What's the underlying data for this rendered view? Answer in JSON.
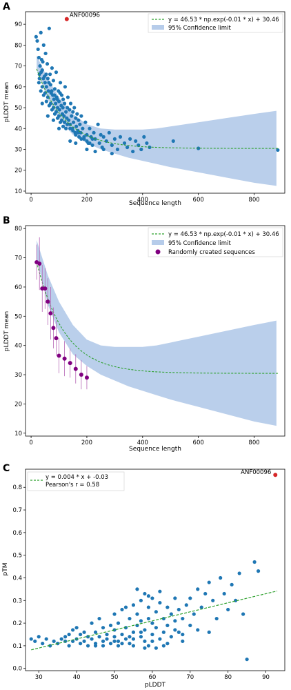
{
  "chart_data": [
    {
      "panel": "A",
      "type": "scatter",
      "xlabel": "Sequence length",
      "ylabel": "pLDDT mean",
      "xlim": [
        -20,
        910
      ],
      "ylim": [
        9,
        96
      ],
      "xticks": [
        0,
        200,
        400,
        600,
        800
      ],
      "yticks": [
        10,
        20,
        30,
        40,
        50,
        60,
        70,
        80,
        90
      ],
      "legend_position": "top-right",
      "fit_label": "y =  46.53 * np.exp(-0.01 * x) + 30.46",
      "band_label": "95% Confidence limit",
      "fit": {
        "a": 46.53,
        "k": 0.01,
        "c": 30.46
      },
      "band": {
        "x": [
          20,
          60,
          100,
          150,
          200,
          250,
          300,
          350,
          400,
          450,
          500,
          600,
          700,
          800,
          880
        ],
        "lower": [
          68,
          54,
          44.5,
          37,
          33,
          30,
          28,
          26,
          24.5,
          23,
          21.5,
          19,
          16.5,
          14,
          12.5
        ],
        "upper": [
          75,
          64,
          55,
          47,
          42,
          40,
          39.5,
          39.5,
          39.5,
          40,
          41,
          43,
          45,
          47,
          48.5
        ]
      },
      "outlier": {
        "label": "ANF00096",
        "x": 128,
        "y": 92.5
      },
      "points": [
        [
          18,
          84
        ],
        [
          22,
          82
        ],
        [
          25,
          78
        ],
        [
          28,
          74
        ],
        [
          30,
          66
        ],
        [
          32,
          70
        ],
        [
          35,
          86
        ],
        [
          38,
          73
        ],
        [
          40,
          68
        ],
        [
          42,
          72
        ],
        [
          45,
          80
        ],
        [
          48,
          65
        ],
        [
          50,
          62
        ],
        [
          52,
          76
        ],
        [
          55,
          60
        ],
        [
          58,
          71
        ],
        [
          60,
          64
        ],
        [
          62,
          58
        ],
        [
          65,
          88
        ],
        [
          68,
          66
        ],
        [
          70,
          61
        ],
        [
          72,
          57
        ],
        [
          75,
          69
        ],
        [
          78,
          56
        ],
        [
          80,
          63
        ],
        [
          82,
          54
        ],
        [
          85,
          59
        ],
        [
          88,
          52
        ],
        [
          90,
          67
        ],
        [
          92,
          55
        ],
        [
          95,
          50
        ],
        [
          98,
          58
        ],
        [
          100,
          53
        ],
        [
          102,
          49
        ],
        [
          105,
          62
        ],
        [
          108,
          51
        ],
        [
          110,
          56
        ],
        [
          112,
          47
        ],
        [
          115,
          54
        ],
        [
          118,
          46
        ],
        [
          120,
          52
        ],
        [
          122,
          60
        ],
        [
          125,
          48
        ],
        [
          128,
          45
        ],
        [
          130,
          50
        ],
        [
          132,
          55
        ],
        [
          135,
          44
        ],
        [
          138,
          49
        ],
        [
          140,
          42
        ],
        [
          142,
          52
        ],
        [
          145,
          46
        ],
        [
          148,
          40
        ],
        [
          150,
          48
        ],
        [
          152,
          43
        ],
        [
          155,
          50
        ],
        [
          158,
          38
        ],
        [
          160,
          45
        ],
        [
          162,
          41
        ],
        [
          165,
          47
        ],
        [
          168,
          39
        ],
        [
          170,
          44
        ],
        [
          172,
          36
        ],
        [
          175,
          42
        ],
        [
          178,
          38
        ],
        [
          180,
          46
        ],
        [
          185,
          40
        ],
        [
          190,
          35
        ],
        [
          195,
          43
        ],
        [
          200,
          37
        ],
        [
          205,
          33
        ],
        [
          210,
          40
        ],
        [
          215,
          36
        ],
        [
          220,
          32
        ],
        [
          225,
          38
        ],
        [
          230,
          35
        ],
        [
          240,
          42
        ],
        [
          245,
          33
        ],
        [
          250,
          37
        ],
        [
          255,
          31
        ],
        [
          260,
          36
        ],
        [
          270,
          34
        ],
        [
          280,
          38
        ],
        [
          290,
          32
        ],
        [
          300,
          35
        ],
        [
          310,
          30
        ],
        [
          320,
          36
        ],
        [
          335,
          33
        ],
        [
          345,
          31
        ],
        [
          355,
          35
        ],
        [
          365,
          29
        ],
        [
          375,
          34
        ],
        [
          385,
          32
        ],
        [
          395,
          30
        ],
        [
          405,
          36
        ],
        [
          415,
          33
        ],
        [
          425,
          31
        ],
        [
          510,
          34
        ],
        [
          600,
          30.5
        ],
        [
          885,
          29.7
        ],
        [
          30,
          64
        ],
        [
          40,
          60
        ],
        [
          50,
          57
        ],
        [
          60,
          55
        ],
        [
          70,
          52
        ],
        [
          80,
          50
        ],
        [
          90,
          48
        ],
        [
          100,
          46
        ],
        [
          110,
          44
        ],
        [
          120,
          43
        ],
        [
          130,
          42
        ],
        [
          140,
          40
        ],
        [
          150,
          39
        ],
        [
          160,
          37
        ],
        [
          170,
          38
        ],
        [
          180,
          35
        ],
        [
          190,
          36
        ],
        [
          200,
          34
        ],
        [
          210,
          33
        ],
        [
          220,
          35
        ],
        [
          35,
          58
        ],
        [
          45,
          56
        ],
        [
          55,
          53
        ],
        [
          65,
          51
        ],
        [
          75,
          49
        ],
        [
          85,
          47
        ],
        [
          95,
          45
        ],
        [
          105,
          43
        ],
        [
          115,
          41
        ],
        [
          125,
          40
        ],
        [
          28,
          62
        ],
        [
          36,
          67
        ],
        [
          44,
          64
        ],
        [
          54,
          66
        ],
        [
          64,
          62
        ],
        [
          74,
          58
        ],
        [
          84,
          56
        ],
        [
          94,
          54
        ],
        [
          104,
          57
        ],
        [
          114,
          50
        ],
        [
          60,
          46
        ],
        [
          80,
          44
        ],
        [
          100,
          40
        ],
        [
          140,
          34
        ],
        [
          160,
          33
        ],
        [
          200,
          30
        ],
        [
          230,
          29
        ],
        [
          260,
          30
        ],
        [
          290,
          28
        ],
        [
          40,
          52
        ]
      ]
    },
    {
      "panel": "B",
      "type": "scatter",
      "xlabel": "Sequence length",
      "ylabel": "pLDDT mean",
      "xlim": [
        -20,
        910
      ],
      "ylim": [
        9,
        81
      ],
      "xticks": [
        0,
        200,
        400,
        600,
        800
      ],
      "yticks": [
        10,
        20,
        30,
        40,
        50,
        60,
        70,
        80
      ],
      "legend_position": "top-right",
      "fit_label": "y =  46.53 * np.exp(-0.01 * x) + 30.46",
      "band_label": "95% Confidence limit",
      "series_label": "Randomly created sequences",
      "fit": {
        "a": 46.53,
        "k": 0.01,
        "c": 30.46
      },
      "band": {
        "x": [
          20,
          60,
          100,
          150,
          200,
          250,
          300,
          350,
          400,
          450,
          500,
          600,
          700,
          800,
          880
        ],
        "lower": [
          70,
          54,
          44.5,
          37,
          33,
          30,
          28,
          26,
          24.5,
          23,
          21.5,
          19,
          16.5,
          14,
          12.5
        ],
        "upper": [
          76,
          64,
          55,
          47,
          42,
          40,
          39.5,
          39.5,
          39.5,
          40,
          41,
          43,
          45,
          47,
          48.5
        ]
      },
      "random_points": [
        {
          "x": 20,
          "y": 68.5,
          "err": 6
        },
        {
          "x": 30,
          "y": 68,
          "err": 9
        },
        {
          "x": 40,
          "y": 59.5,
          "err": 8
        },
        {
          "x": 50,
          "y": 59.5,
          "err": 7
        },
        {
          "x": 60,
          "y": 55,
          "err": 8
        },
        {
          "x": 70,
          "y": 51,
          "err": 9
        },
        {
          "x": 80,
          "y": 46,
          "err": 7
        },
        {
          "x": 90,
          "y": 42.5,
          "err": 6
        },
        {
          "x": 100,
          "y": 36.5,
          "err": 6
        },
        {
          "x": 120,
          "y": 35.5,
          "err": 6
        },
        {
          "x": 140,
          "y": 34,
          "err": 5
        },
        {
          "x": 160,
          "y": 32,
          "err": 5
        },
        {
          "x": 180,
          "y": 30,
          "err": 5
        },
        {
          "x": 200,
          "y": 29,
          "err": 4
        }
      ]
    },
    {
      "panel": "C",
      "type": "scatter",
      "xlabel": "pLDDT",
      "ylabel": "pTM",
      "xlim": [
        26.5,
        95
      ],
      "ylim": [
        -0.01,
        0.88
      ],
      "xticks": [
        30,
        40,
        50,
        60,
        70,
        80,
        90
      ],
      "yticks": [
        0.0,
        0.1,
        0.2,
        0.3,
        0.4,
        0.5,
        0.6,
        0.7,
        0.8
      ],
      "ytick_labels": [
        "0.0",
        "0.1",
        "0.2",
        "0.3",
        "0.4",
        "0.5",
        "0.6",
        "0.7",
        "0.8"
      ],
      "legend_position": "top-left",
      "fit_label": "y = 0.004 * x + -0.03",
      "r_label": "Pearson's r = 0.58",
      "fit": {
        "m": 0.004,
        "b": -0.03,
        "x_range": [
          28,
          93
        ]
      },
      "outlier": {
        "label": "ANF00096",
        "x": 92.5,
        "y": 0.855
      },
      "points": [
        [
          28,
          0.13
        ],
        [
          29,
          0.12
        ],
        [
          30,
          0.14
        ],
        [
          31,
          0.11
        ],
        [
          32,
          0.13
        ],
        [
          33,
          0.1
        ],
        [
          34,
          0.12
        ],
        [
          35,
          0.11
        ],
        [
          36,
          0.13
        ],
        [
          37,
          0.12
        ],
        [
          38,
          0.1
        ],
        [
          38,
          0.15
        ],
        [
          39,
          0.12
        ],
        [
          40,
          0.13
        ],
        [
          40,
          0.18
        ],
        [
          41,
          0.11
        ],
        [
          42,
          0.12
        ],
        [
          42,
          0.16
        ],
        [
          43,
          0.14
        ],
        [
          44,
          0.13
        ],
        [
          44,
          0.2
        ],
        [
          45,
          0.11
        ],
        [
          45,
          0.16
        ],
        [
          46,
          0.14
        ],
        [
          46,
          0.22
        ],
        [
          47,
          0.12
        ],
        [
          47,
          0.18
        ],
        [
          48,
          0.13
        ],
        [
          48,
          0.15
        ],
        [
          49,
          0.19
        ],
        [
          49,
          0.11
        ],
        [
          50,
          0.14
        ],
        [
          50,
          0.24
        ],
        [
          50,
          0.17
        ],
        [
          51,
          0.12
        ],
        [
          51,
          0.2
        ],
        [
          52,
          0.15
        ],
        [
          52,
          0.26
        ],
        [
          53,
          0.13
        ],
        [
          53,
          0.18
        ],
        [
          54,
          0.22
        ],
        [
          54,
          0.11
        ],
        [
          55,
          0.16
        ],
        [
          55,
          0.28
        ],
        [
          55,
          0.13
        ],
        [
          56,
          0.19
        ],
        [
          56,
          0.24
        ],
        [
          57,
          0.14
        ],
        [
          57,
          0.3
        ],
        [
          57,
          0.21
        ],
        [
          58,
          0.17
        ],
        [
          58,
          0.33
        ],
        [
          58,
          0.12
        ],
        [
          59,
          0.22
        ],
        [
          59,
          0.27
        ],
        [
          60,
          0.15
        ],
        [
          60,
          0.31
        ],
        [
          60,
          0.2
        ],
        [
          61,
          0.18
        ],
        [
          61,
          0.25
        ],
        [
          62,
          0.13
        ],
        [
          62,
          0.29
        ],
        [
          63,
          0.22
        ],
        [
          63,
          0.16
        ],
        [
          64,
          0.27
        ],
        [
          64,
          0.19
        ],
        [
          65,
          0.24
        ],
        [
          65,
          0.14
        ],
        [
          66,
          0.31
        ],
        [
          66,
          0.21
        ],
        [
          67,
          0.26
        ],
        [
          67,
          0.16
        ],
        [
          68,
          0.22
        ],
        [
          68,
          0.12
        ],
        [
          69,
          0.28
        ],
        [
          70,
          0.19
        ],
        [
          70,
          0.31
        ],
        [
          71,
          0.24
        ],
        [
          72,
          0.17
        ],
        [
          72,
          0.35
        ],
        [
          73,
          0.27
        ],
        [
          74,
          0.33
        ],
        [
          75,
          0.16
        ],
        [
          75,
          0.38
        ],
        [
          76,
          0.3
        ],
        [
          77,
          0.22
        ],
        [
          78,
          0.4
        ],
        [
          79,
          0.33
        ],
        [
          80,
          0.26
        ],
        [
          81,
          0.37
        ],
        [
          82,
          0.3
        ],
        [
          83,
          0.42
        ],
        [
          84,
          0.24
        ],
        [
          85,
          0.04
        ],
        [
          87,
          0.47
        ],
        [
          88,
          0.43
        ],
        [
          56,
          0.35
        ],
        [
          59,
          0.32
        ],
        [
          62,
          0.34
        ],
        [
          53,
          0.27
        ],
        [
          45,
          0.1
        ],
        [
          43,
          0.1
        ],
        [
          47,
          0.1
        ],
        [
          51,
          0.1
        ],
        [
          55,
          0.1
        ],
        [
          59,
          0.1
        ],
        [
          63,
          0.1
        ],
        [
          37,
          0.14
        ],
        [
          41,
          0.15
        ],
        [
          39,
          0.17
        ],
        [
          50,
          0.12
        ],
        [
          52,
          0.11
        ],
        [
          54,
          0.14
        ],
        [
          57,
          0.16
        ],
        [
          60,
          0.12
        ],
        [
          61,
          0.09
        ],
        [
          58,
          0.09
        ],
        [
          64,
          0.11
        ],
        [
          66,
          0.17
        ],
        [
          68,
          0.15
        ]
      ]
    }
  ]
}
